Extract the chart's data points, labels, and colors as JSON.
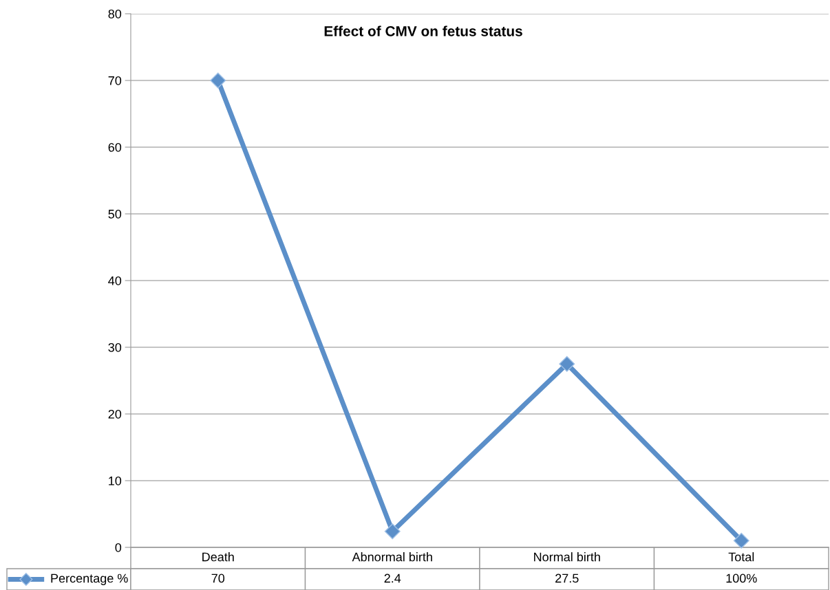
{
  "chart_data": {
    "type": "line",
    "title": "Effect of CMV on fetus status",
    "categories": [
      "Death",
      "Abnormal birth",
      "Normal birth",
      "Total"
    ],
    "series": [
      {
        "name": "Percentage %",
        "color": "#5b8fc9",
        "values": [
          70,
          2.4,
          27.5,
          1
        ],
        "value_labels": [
          "70",
          "2.4",
          "27.5",
          "100%"
        ]
      }
    ],
    "ylim": [
      0,
      80
    ],
    "yticks": [
      0,
      10,
      20,
      30,
      40,
      50,
      60,
      70,
      80
    ],
    "grid": "y",
    "marker": "diamond",
    "line_style": "solid",
    "data_labels": true
  }
}
